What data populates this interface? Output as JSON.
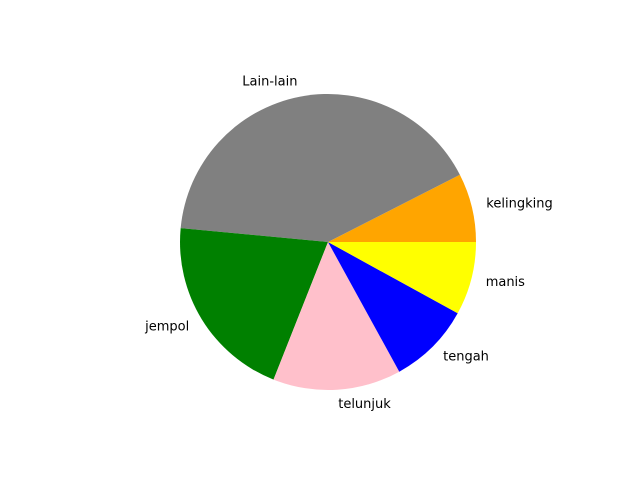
{
  "chart_data": {
    "type": "pie",
    "title": "",
    "start_angle_deg": 0,
    "direction": "counterclockwise",
    "slices": [
      {
        "label": "kelingking",
        "value": 7.5,
        "color": "#FFA500"
      },
      {
        "label": "Lain-lain",
        "value": 41.0,
        "color": "#808080"
      },
      {
        "label": "jempol",
        "value": 20.5,
        "color": "#008000"
      },
      {
        "label": "telunjuk",
        "value": 14.0,
        "color": "#FFC0CB"
      },
      {
        "label": "tengah",
        "value": 9.0,
        "color": "#0000FF"
      },
      {
        "label": "manis",
        "value": 8.0,
        "color": "#FFFF00"
      }
    ]
  }
}
